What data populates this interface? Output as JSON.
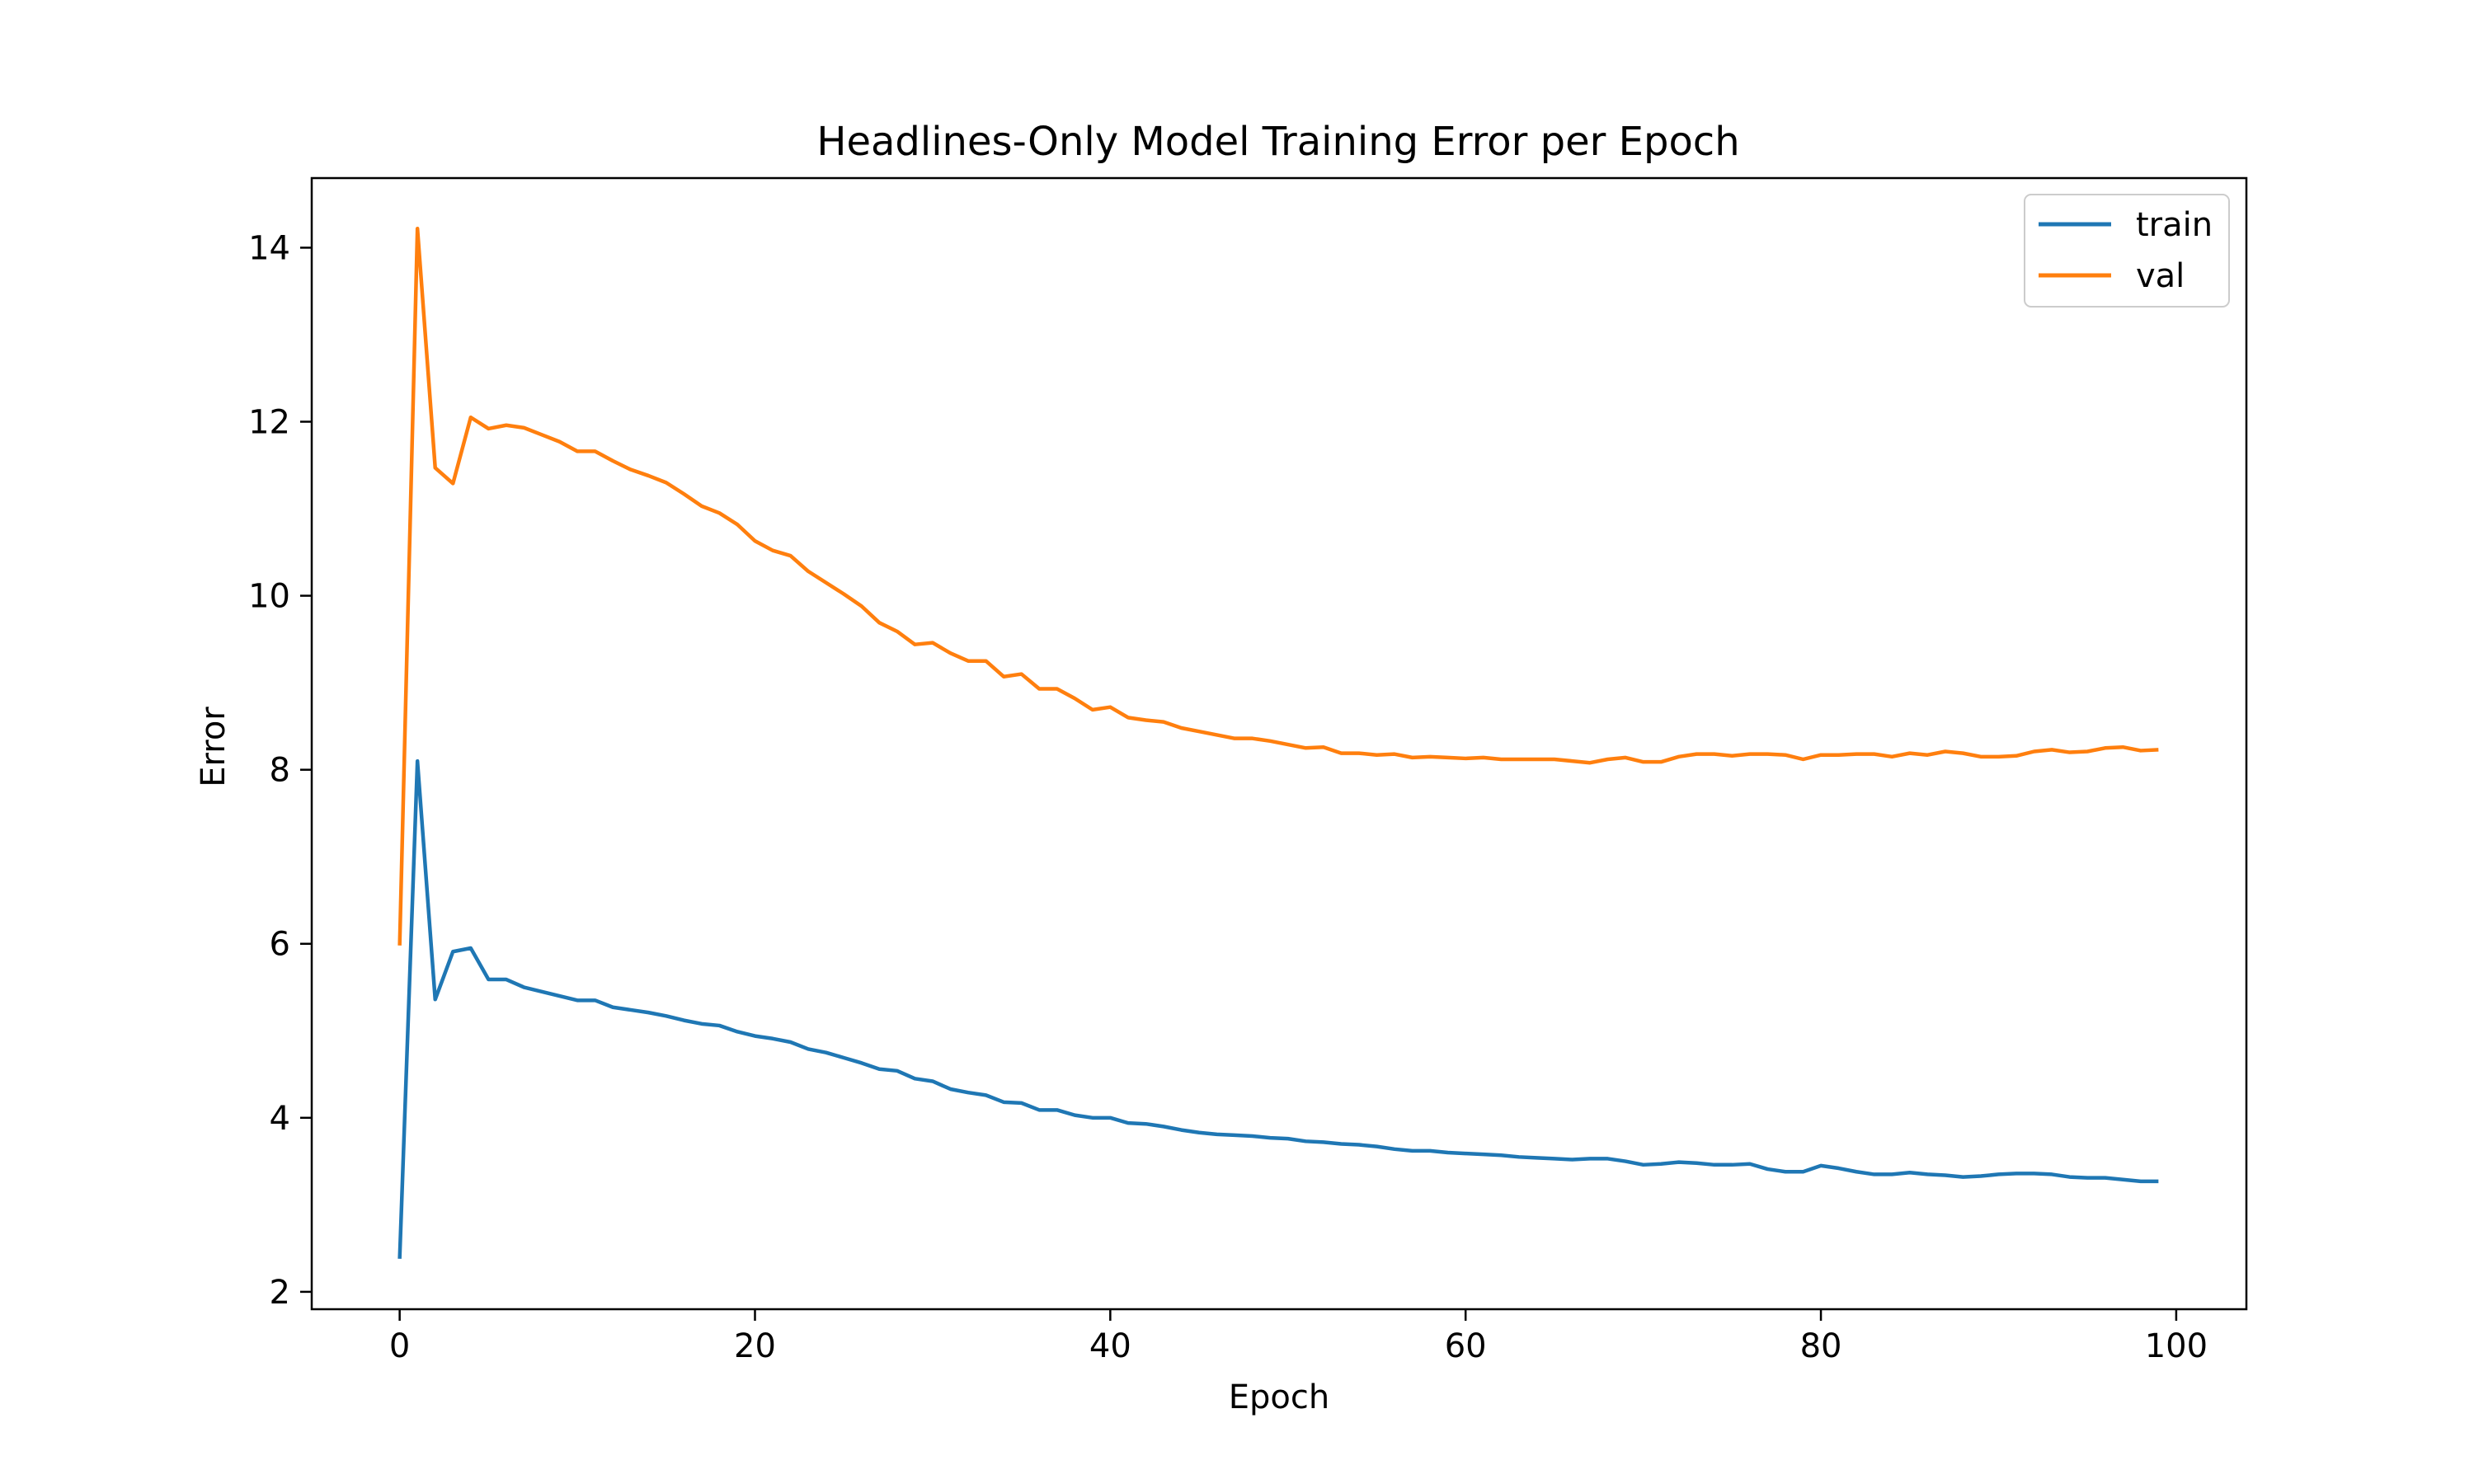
{
  "chart_data": {
    "type": "line",
    "title": "Headlines-Only Model Training Error per Epoch",
    "xlabel": "Epoch",
    "ylabel": "Error",
    "xlim": [
      -4.95,
      103.95
    ],
    "ylim": [
      1.8,
      14.8
    ],
    "xticks": [
      0,
      20,
      40,
      60,
      80,
      100
    ],
    "yticks": [
      2,
      4,
      6,
      8,
      10,
      12,
      14
    ],
    "grid": false,
    "legend": "top-right",
    "x": [
      0,
      1,
      2,
      3,
      4,
      5,
      6,
      7,
      8,
      9,
      10,
      11,
      12,
      13,
      14,
      15,
      16,
      17,
      18,
      19,
      20,
      21,
      22,
      23,
      24,
      25,
      26,
      27,
      28,
      29,
      30,
      31,
      32,
      33,
      34,
      35,
      36,
      37,
      38,
      39,
      40,
      41,
      42,
      43,
      44,
      45,
      46,
      47,
      48,
      49,
      50,
      51,
      52,
      53,
      54,
      55,
      56,
      57,
      58,
      59,
      60,
      61,
      62,
      63,
      64,
      65,
      66,
      67,
      68,
      69,
      70,
      71,
      72,
      73,
      74,
      75,
      76,
      77,
      78,
      79,
      80,
      81,
      82,
      83,
      84,
      85,
      86,
      87,
      88,
      89,
      90,
      91,
      92,
      93,
      94,
      95,
      96,
      97,
      98,
      99
    ],
    "series": [
      {
        "name": "train",
        "color": "#1f77b4",
        "values": [
          2.38,
          8.1,
          5.36,
          5.91,
          5.95,
          5.59,
          5.59,
          5.5,
          5.45,
          5.4,
          5.35,
          5.35,
          5.27,
          5.24,
          5.21,
          5.17,
          5.12,
          5.08,
          5.06,
          4.99,
          4.94,
          4.91,
          4.87,
          4.79,
          4.75,
          4.69,
          4.63,
          4.56,
          4.54,
          4.45,
          4.42,
          4.33,
          4.29,
          4.26,
          4.18,
          4.17,
          4.09,
          4.09,
          4.03,
          4.0,
          4.0,
          3.94,
          3.93,
          3.9,
          3.86,
          3.83,
          3.81,
          3.8,
          3.79,
          3.77,
          3.76,
          3.73,
          3.72,
          3.7,
          3.69,
          3.67,
          3.64,
          3.62,
          3.62,
          3.6,
          3.59,
          3.58,
          3.57,
          3.55,
          3.54,
          3.53,
          3.52,
          3.53,
          3.53,
          3.5,
          3.46,
          3.47,
          3.49,
          3.48,
          3.46,
          3.46,
          3.47,
          3.41,
          3.38,
          3.38,
          3.45,
          3.42,
          3.38,
          3.35,
          3.35,
          3.37,
          3.35,
          3.34,
          3.32,
          3.33,
          3.35,
          3.36,
          3.36,
          3.35,
          3.32,
          3.31,
          3.31,
          3.29,
          3.27,
          3.27
        ]
      },
      {
        "name": "val",
        "color": "#ff7f0e",
        "values": [
          5.98,
          14.22,
          11.47,
          11.29,
          12.05,
          11.92,
          11.96,
          11.93,
          11.85,
          11.77,
          11.66,
          11.66,
          11.55,
          11.45,
          11.38,
          11.3,
          11.17,
          11.03,
          10.95,
          10.82,
          10.63,
          10.52,
          10.46,
          10.28,
          10.15,
          10.02,
          9.88,
          9.69,
          9.59,
          9.44,
          9.46,
          9.34,
          9.25,
          9.25,
          9.07,
          9.1,
          8.93,
          8.93,
          8.82,
          8.69,
          8.72,
          8.6,
          8.57,
          8.55,
          8.48,
          8.44,
          8.4,
          8.36,
          8.36,
          8.33,
          8.29,
          8.25,
          8.26,
          8.19,
          8.19,
          8.17,
          8.18,
          8.14,
          8.15,
          8.14,
          8.13,
          8.14,
          8.12,
          8.12,
          8.12,
          8.12,
          8.1,
          8.08,
          8.12,
          8.14,
          8.09,
          8.09,
          8.15,
          8.18,
          8.18,
          8.16,
          8.18,
          8.18,
          8.17,
          8.12,
          8.17,
          8.17,
          8.18,
          8.18,
          8.15,
          8.19,
          8.17,
          8.21,
          8.19,
          8.15,
          8.15,
          8.16,
          8.21,
          8.23,
          8.2,
          8.21,
          8.25,
          8.26,
          8.22,
          8.23
        ]
      }
    ]
  }
}
